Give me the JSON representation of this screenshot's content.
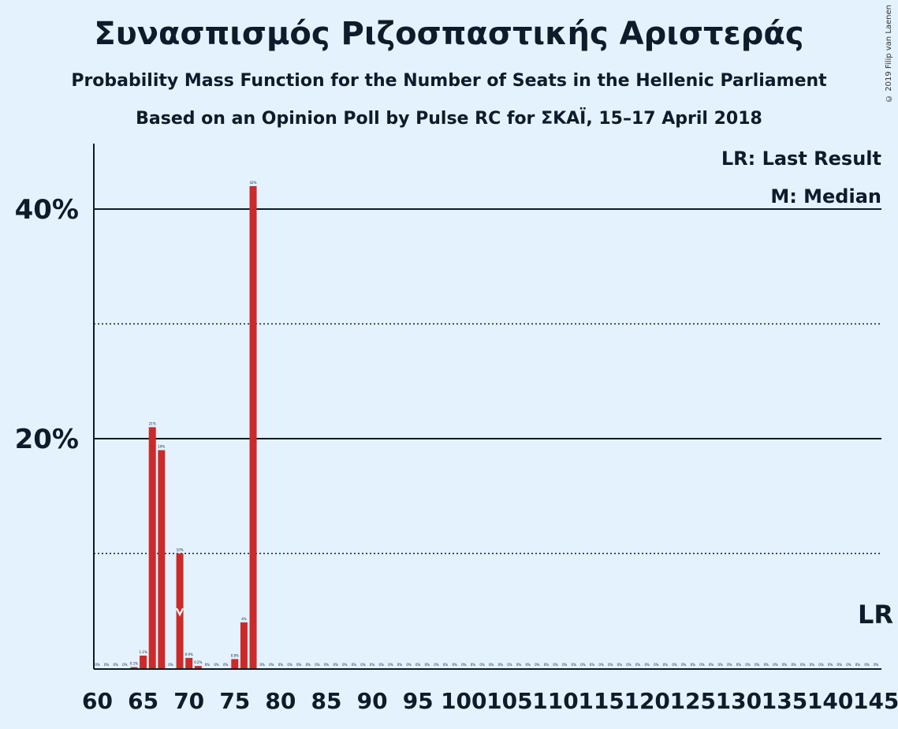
{
  "header": {
    "title": "Συνασπισμός Ριζοσπαστικής Αριστεράς",
    "subtitle": "Probability Mass Function for the Number of Seats in the Hellenic Parliament",
    "source": "Based on an Opinion Poll by Pulse RC for ΣΚΑΪ, 15–17 April 2018",
    "copyright": "© 2019 Filip van Laenen"
  },
  "legend": {
    "last_result": "LR: Last Result",
    "median": "M: Median",
    "lr_marker": "LR"
  },
  "colors": {
    "bar": "#cc2a2a",
    "background": "#e3f2fd",
    "text": "#0d1b2a"
  },
  "chart_data": {
    "type": "bar",
    "xlim": [
      60,
      145
    ],
    "ylim": [
      0,
      45
    ],
    "ytick_labels": [
      {
        "value": 20,
        "label": "20%"
      },
      {
        "value": 40,
        "label": "40%"
      }
    ],
    "xticks": [
      60,
      65,
      70,
      75,
      80,
      85,
      90,
      95,
      100,
      105,
      110,
      115,
      120,
      125,
      130,
      135,
      140,
      145
    ],
    "gridlines_solid": [
      20,
      40
    ],
    "gridlines_dotted": [
      10,
      30
    ],
    "median_seat": 69,
    "last_result_seat": 145,
    "x": [
      60,
      61,
      62,
      63,
      64,
      65,
      66,
      67,
      68,
      69,
      70,
      71,
      72,
      73,
      74,
      75,
      76,
      77,
      78,
      79,
      80,
      81,
      82,
      83,
      84,
      85,
      86,
      87,
      88,
      89,
      90,
      91,
      92,
      93,
      94,
      95,
      96,
      97,
      98,
      99,
      100,
      101,
      102,
      103,
      104,
      105,
      106,
      107,
      108,
      109,
      110,
      111,
      112,
      113,
      114,
      115,
      116,
      117,
      118,
      119,
      120,
      121,
      122,
      123,
      124,
      125,
      126,
      127,
      128,
      129,
      130,
      131,
      132,
      133,
      134,
      135,
      136,
      137,
      138,
      139,
      140,
      141,
      142,
      143,
      144,
      145
    ],
    "values": [
      0,
      0,
      0,
      0,
      0.1,
      1.1,
      21,
      19,
      0,
      10,
      0.9,
      0.2,
      0,
      0,
      0,
      0.8,
      4,
      42,
      0,
      0,
      0,
      0,
      0,
      0,
      0,
      0,
      0,
      0,
      0,
      0,
      0,
      0,
      0,
      0,
      0,
      0,
      0,
      0,
      0,
      0,
      0,
      0,
      0,
      0,
      0,
      0,
      0,
      0,
      0,
      0,
      0,
      0,
      0,
      0,
      0,
      0,
      0,
      0,
      0,
      0,
      0,
      0,
      0,
      0,
      0,
      0,
      0,
      0,
      0,
      0,
      0,
      0,
      0,
      0,
      0,
      0,
      0,
      0,
      0,
      0,
      0,
      0,
      0,
      0,
      0,
      0
    ],
    "labels": [
      "0%",
      "0%",
      "0%",
      "0%",
      "0.1%",
      "1.1%",
      "21%",
      "19%",
      "0%",
      "10%",
      "0.9%",
      "0.2%",
      "0%",
      "0%",
      "0%",
      "0.8%",
      "4%",
      "42%",
      "0%",
      "0%",
      "0%",
      "0%",
      "0%",
      "0%",
      "0%",
      "0%",
      "0%",
      "0%",
      "0%",
      "0%",
      "0%",
      "0%",
      "0%",
      "0%",
      "0%",
      "0%",
      "0%",
      "0%",
      "0%",
      "0%",
      "0%",
      "0%",
      "0%",
      "0%",
      "0%",
      "0%",
      "0%",
      "0%",
      "0%",
      "0%",
      "0%",
      "0%",
      "0%",
      "0%",
      "0%",
      "0%",
      "0%",
      "0%",
      "0%",
      "0%",
      "0%",
      "0%",
      "0%",
      "0%",
      "0%",
      "0%",
      "0%",
      "0%",
      "0%",
      "0%",
      "0%",
      "0%",
      "0%",
      "0%",
      "0%",
      "0%",
      "0%",
      "0%",
      "0%",
      "0%",
      "0%",
      "0%",
      "0%",
      "0%",
      "0%",
      "0%"
    ]
  }
}
